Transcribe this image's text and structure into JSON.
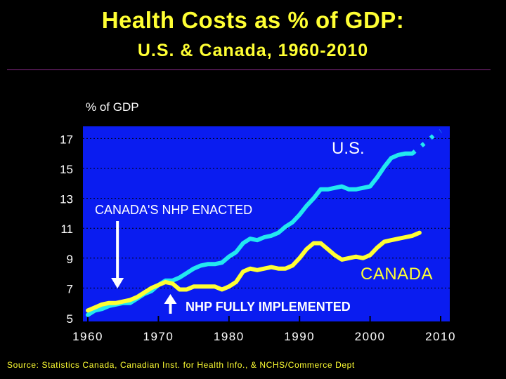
{
  "title": "Health Costs as % of GDP:",
  "subtitle": "U.S. & Canada, 1960-2010",
  "source": "Source: Statistics Canada, Canadian Inst. for Health Info., & NCHS/Commerce Dept",
  "colors": {
    "background": "#000000",
    "plot_bg": "#0a1cf0",
    "title": "#ffff33",
    "axis_text": "#ffffff",
    "us_line": "#22e8f0",
    "canada_line": "#ffff33"
  },
  "chart_data": {
    "type": "line",
    "title": "Health Costs as % of GDP: U.S. & Canada, 1960-2010",
    "ylabel": "% of GDP",
    "xlabel": "",
    "xlim": [
      1960,
      2010
    ],
    "ylim": [
      5,
      18
    ],
    "xticks": [
      1960,
      1970,
      1980,
      1990,
      2000,
      2010
    ],
    "yticks": [
      5,
      7,
      9,
      11,
      13,
      15,
      17
    ],
    "grid": true,
    "series": [
      {
        "name": "U.S.",
        "label": "U.S.",
        "color": "#22e8f0",
        "x": [
          1960,
          1961,
          1962,
          1963,
          1964,
          1965,
          1966,
          1967,
          1968,
          1969,
          1970,
          1971,
          1972,
          1973,
          1974,
          1975,
          1976,
          1977,
          1978,
          1979,
          1980,
          1981,
          1982,
          1983,
          1984,
          1985,
          1986,
          1987,
          1988,
          1989,
          1990,
          1991,
          1992,
          1993,
          1994,
          1995,
          1996,
          1997,
          1998,
          1999,
          2000,
          2001,
          2002,
          2003,
          2004,
          2005,
          2006
        ],
        "values": [
          5.2,
          5.5,
          5.6,
          5.8,
          5.9,
          6.0,
          6.0,
          6.3,
          6.6,
          6.8,
          7.2,
          7.5,
          7.5,
          7.7,
          8.0,
          8.3,
          8.5,
          8.6,
          8.6,
          8.7,
          9.1,
          9.4,
          10.0,
          10.3,
          10.2,
          10.4,
          10.5,
          10.7,
          11.1,
          11.4,
          11.9,
          12.5,
          13.0,
          13.6,
          13.6,
          13.7,
          13.8,
          13.6,
          13.6,
          13.7,
          13.8,
          14.4,
          15.1,
          15.7,
          15.9,
          16.0,
          16.0
        ]
      },
      {
        "name": "U.S. (projected)",
        "color": "#22e8f0",
        "dashed": true,
        "x": [
          2006,
          2007,
          2008,
          2009,
          2010
        ],
        "values": [
          16.0,
          16.4,
          16.8,
          17.2,
          17.5
        ]
      },
      {
        "name": "Canada",
        "label": "CANADA",
        "color": "#ffff33",
        "x": [
          1960,
          1961,
          1962,
          1963,
          1964,
          1965,
          1966,
          1967,
          1968,
          1969,
          1970,
          1971,
          1972,
          1973,
          1974,
          1975,
          1976,
          1977,
          1978,
          1979,
          1980,
          1981,
          1982,
          1983,
          1984,
          1985,
          1986,
          1987,
          1988,
          1989,
          1990,
          1991,
          1992,
          1993,
          1994,
          1995,
          1996,
          1997,
          1998,
          1999,
          2000,
          2001,
          2002,
          2003,
          2004,
          2005,
          2006,
          2007
        ],
        "values": [
          5.5,
          5.7,
          5.9,
          6.0,
          6.0,
          6.1,
          6.2,
          6.4,
          6.7,
          7.0,
          7.2,
          7.4,
          7.3,
          6.9,
          6.9,
          7.1,
          7.1,
          7.1,
          7.1,
          6.9,
          7.1,
          7.4,
          8.1,
          8.3,
          8.2,
          8.3,
          8.4,
          8.3,
          8.3,
          8.5,
          9.0,
          9.6,
          10.0,
          10.0,
          9.6,
          9.2,
          8.9,
          9.0,
          9.1,
          9.0,
          9.2,
          9.7,
          10.1,
          10.2,
          10.3,
          10.4,
          10.5,
          10.7
        ]
      }
    ],
    "annotations": [
      {
        "id": "nhp_enacted",
        "text": "CANADA'S NHP ENACTED",
        "year": 1964,
        "arrow": "down"
      },
      {
        "id": "nhp_implemented",
        "text": "NHP FULLY IMPLEMENTED",
        "year": 1972,
        "arrow": "up"
      }
    ]
  }
}
